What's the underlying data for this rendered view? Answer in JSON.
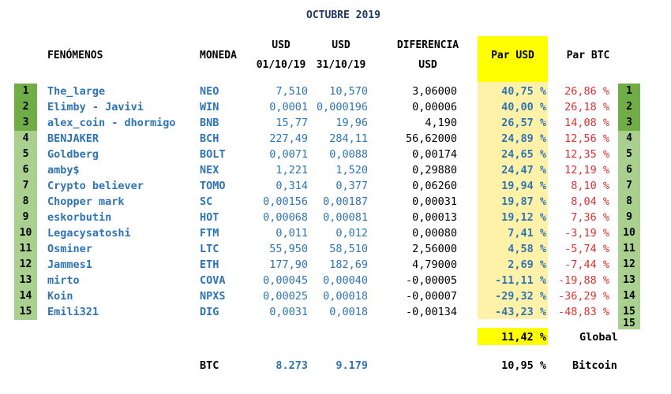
{
  "title": "OCTUBRE 2019",
  "headers": {
    "fenomenos": "FENÓMENOS",
    "moneda": "MONEDA",
    "usd1_line1": "USD",
    "usd1_line2": "01/10/19",
    "usd2_line1": "USD",
    "usd2_line2": "31/10/19",
    "diff_line1": "DIFERENCIA",
    "diff_line2": "USD",
    "par_usd": "Par USD",
    "par_btc": "Par BTC"
  },
  "rows": [
    {
      "rank": "1",
      "name": "The_large",
      "coin": "NEO",
      "usd1": "7,510",
      "usd2": "10,570",
      "diff": "3,06000",
      "par_usd": "40,75 %",
      "par_btc": "26,86 %"
    },
    {
      "rank": "2",
      "name": "Elimby - Javivi",
      "coin": "WIN",
      "usd1": "0,0001",
      "usd2": "0,000196",
      "diff": "0,00006",
      "par_usd": "40,00 %",
      "par_btc": "26,18 %"
    },
    {
      "rank": "3",
      "name": "alex_coin - dhormigo",
      "coin": "BNB",
      "usd1": "15,77",
      "usd2": "19,96",
      "diff": "4,190",
      "par_usd": "26,57 %",
      "par_btc": "14,08 %"
    },
    {
      "rank": "4",
      "name": "BENJAKER",
      "coin": "BCH",
      "usd1": "227,49",
      "usd2": "284,11",
      "diff": "56,62000",
      "par_usd": "24,89 %",
      "par_btc": "12,56 %"
    },
    {
      "rank": "5",
      "name": "Goldberg",
      "coin": "BOLT",
      "usd1": "0,0071",
      "usd2": "0,0088",
      "diff": "0,00174",
      "par_usd": "24,65 %",
      "par_btc": "12,35 %"
    },
    {
      "rank": "6",
      "name": "amby$",
      "coin": "NEX",
      "usd1": "1,221",
      "usd2": "1,520",
      "diff": "0,29880",
      "par_usd": "24,47 %",
      "par_btc": "12,19 %"
    },
    {
      "rank": "7",
      "name": "Crypto believer",
      "coin": "TOMO",
      "usd1": "0,314",
      "usd2": "0,377",
      "diff": "0,06260",
      "par_usd": "19,94 %",
      "par_btc": "8,10 %"
    },
    {
      "rank": "8",
      "name": "Chopper mark",
      "coin": "SC",
      "usd1": "0,00156",
      "usd2": "0,00187",
      "diff": "0,00031",
      "par_usd": "19,87 %",
      "par_btc": "8,04 %"
    },
    {
      "rank": "9",
      "name": "eskorbutin",
      "coin": "HOT",
      "usd1": "0,00068",
      "usd2": "0,00081",
      "diff": "0,00013",
      "par_usd": "19,12 %",
      "par_btc": "7,36 %"
    },
    {
      "rank": "10",
      "name": "Legacysatoshi",
      "coin": "FTM",
      "usd1": "0,011",
      "usd2": "0,012",
      "diff": "0,00080",
      "par_usd": "7,41 %",
      "par_btc": "-3,19 %"
    },
    {
      "rank": "11",
      "name": "Osminer",
      "coin": "LTC",
      "usd1": "55,950",
      "usd2": "58,510",
      "diff": "2,56000",
      "par_usd": "4,58 %",
      "par_btc": "-5,74 %"
    },
    {
      "rank": "12",
      "name": "Jammes1",
      "coin": "ETH",
      "usd1": "177,90",
      "usd2": "182,69",
      "diff": "4,79000",
      "par_usd": "2,69 %",
      "par_btc": "-7,44 %"
    },
    {
      "rank": "13",
      "name": "mirto",
      "coin": "COVA",
      "usd1": "0,00045",
      "usd2": "0,00040",
      "diff": "-0,00005",
      "par_usd": "-11,11 %",
      "par_btc": "-19,88 %"
    },
    {
      "rank": "14",
      "name": "Koin",
      "coin": "NPXS",
      "usd1": "0,00025",
      "usd2": "0,00018",
      "diff": "-0,00007",
      "par_usd": "-29,32 %",
      "par_btc": "-36,29 %"
    },
    {
      "rank": "15",
      "name": "Emili321",
      "coin": "DIG",
      "usd1": "0,0031",
      "usd2": "0,0018",
      "diff": "-0,00134",
      "par_usd": "-43,23 %",
      "par_btc": "-48,83 %"
    }
  ],
  "extra_rank": "15",
  "global": {
    "value": "11,42 %",
    "label": "Global"
  },
  "btc": {
    "coin": "BTC",
    "usd1": "8.273",
    "usd2": "9.179",
    "value": "10,95 %",
    "label": "Bitcoin"
  },
  "colors": {
    "rank_top": "#70ad47",
    "rank_rest": "#a9d08e",
    "yellow": "#ffff00",
    "pale_yellow": "#fff2a8",
    "blue_text": "#2e74b5",
    "red_text": "#e03030"
  }
}
